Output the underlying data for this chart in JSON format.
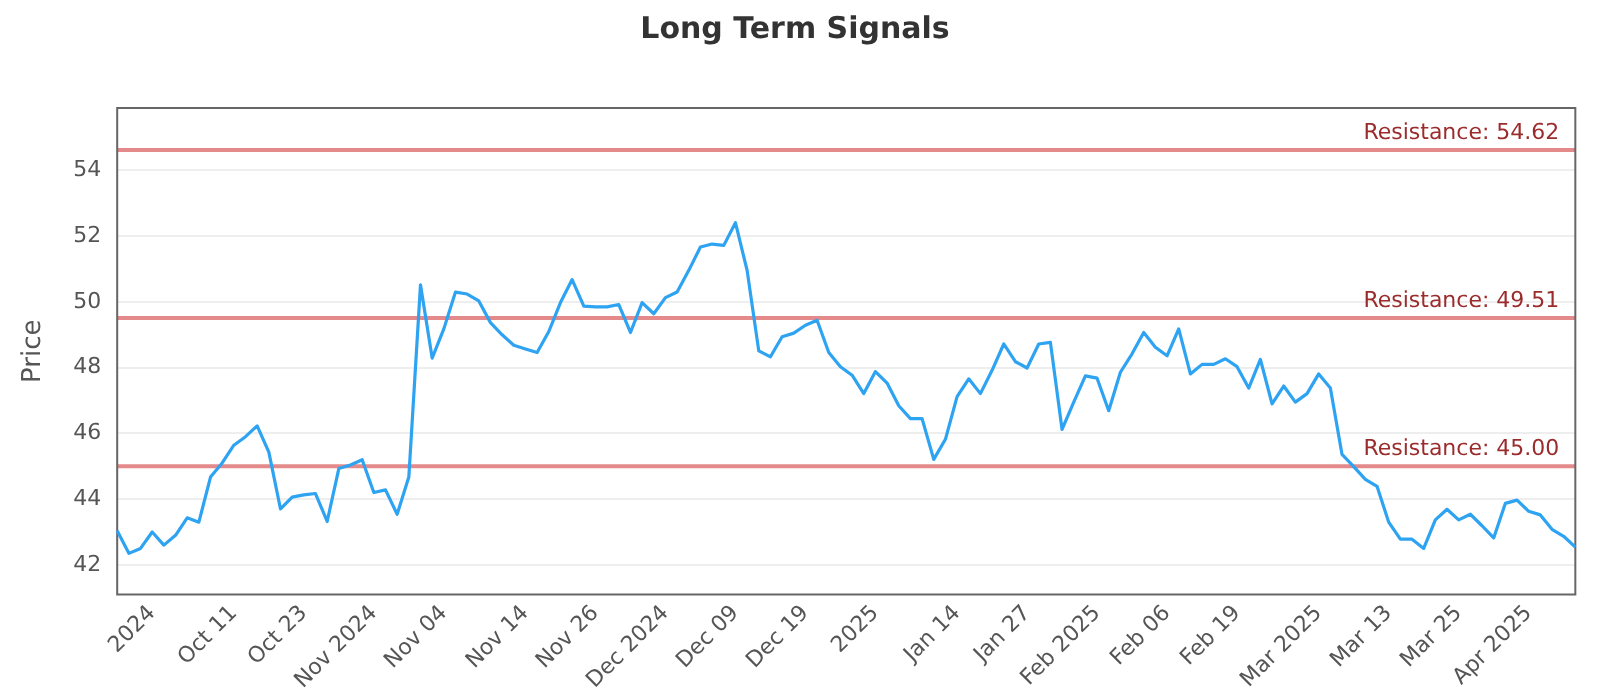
{
  "chart_data": {
    "type": "line",
    "title": "Long Term Signals",
    "ylabel": "Price",
    "categories": [
      null,
      null,
      null,
      "2024",
      null,
      null,
      null,
      null,
      null,
      null,
      "Oct 11",
      null,
      null,
      null,
      null,
      null,
      "Oct 23",
      null,
      null,
      null,
      null,
      null,
      "Nov 2024",
      null,
      null,
      null,
      null,
      null,
      "Nov 04",
      null,
      null,
      null,
      null,
      null,
      null,
      "Nov 14",
      null,
      null,
      null,
      null,
      null,
      "Nov 26",
      null,
      null,
      null,
      null,
      null,
      "Dec 2024",
      null,
      null,
      null,
      null,
      null,
      "Dec 09",
      null,
      null,
      null,
      null,
      null,
      "Dec 19",
      null,
      null,
      null,
      null,
      null,
      "2025",
      null,
      null,
      null,
      null,
      null,
      null,
      "Jan 14",
      null,
      null,
      null,
      null,
      null,
      "Jan 27",
      null,
      null,
      null,
      null,
      null,
      "Feb 2025",
      null,
      null,
      null,
      null,
      null,
      "Feb 06",
      null,
      null,
      null,
      null,
      null,
      "Feb 19",
      null,
      null,
      null,
      null,
      null,
      null,
      "Mar 2025",
      null,
      null,
      null,
      null,
      null,
      "Mar 13",
      null,
      null,
      null,
      null,
      null,
      "Mar 25",
      null,
      null,
      null,
      null,
      null,
      "Apr 2025",
      null,
      null,
      null,
      null
    ],
    "series": [
      {
        "color": "#2ea3f2",
        "values": [
          43.04,
          42.35,
          42.5,
          43.0,
          42.6,
          42.9,
          43.43,
          43.3,
          44.67,
          45.1,
          45.64,
          45.9,
          46.23,
          45.43,
          43.7,
          44.06,
          44.13,
          44.17,
          43.32,
          44.93,
          45.04,
          45.2,
          44.2,
          44.28,
          43.54,
          44.67,
          50.52,
          48.29,
          49.18,
          50.3,
          50.24,
          50.03,
          49.37,
          49.0,
          48.68,
          48.57,
          48.46,
          49.1,
          49.98,
          50.68,
          49.87,
          49.85,
          49.85,
          49.92,
          49.07,
          49.98,
          49.64,
          50.13,
          50.3,
          50.96,
          51.67,
          51.76,
          51.72,
          52.41,
          50.96,
          48.51,
          48.33,
          48.94,
          49.05,
          49.29,
          49.44,
          48.46,
          48.03,
          47.77,
          47.21,
          47.88,
          47.53,
          46.84,
          46.45,
          46.45,
          45.21,
          45.82,
          47.12,
          47.66,
          47.21,
          47.92,
          48.72,
          48.18,
          47.99,
          48.72,
          48.77,
          46.12,
          46.95,
          47.75,
          47.68,
          46.69,
          47.86,
          48.42,
          49.07,
          48.62,
          48.36,
          49.18,
          47.81,
          48.1,
          48.1,
          48.27,
          48.03,
          47.38,
          48.25,
          46.9,
          47.44,
          46.95,
          47.21,
          47.81,
          47.38,
          45.36,
          44.99,
          44.6,
          44.39,
          43.3,
          42.78,
          42.78,
          42.5,
          43.37,
          43.69,
          43.37,
          43.54,
          43.19,
          42.82,
          43.87,
          43.97,
          43.63,
          43.52,
          43.08,
          42.87,
          42.54
        ]
      }
    ],
    "ylim": [
      41.1,
      55.9
    ],
    "yticks": [
      42,
      44,
      46,
      48,
      50,
      52,
      54
    ],
    "ref_lines": [
      {
        "axis": "y",
        "value": 54.62,
        "label": "Resistance: 54.62",
        "color": "#e58a8a"
      },
      {
        "axis": "y",
        "value": 49.51,
        "label": "Resistance: 49.51",
        "color": "#e58a8a"
      },
      {
        "axis": "y",
        "value": 45.0,
        "label": "Resistance: 45.00",
        "color": "#e58a8a"
      }
    ],
    "grid": "y",
    "legend": false,
    "marker": "none",
    "line_style": "solid"
  }
}
